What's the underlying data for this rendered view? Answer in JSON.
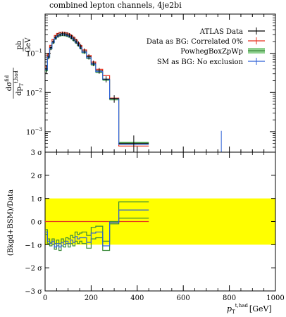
{
  "figure": {
    "title": "combined lepton channels, 4je2bi"
  },
  "chart_data": [
    {
      "type": "line",
      "panel": "upper",
      "ylabel_num": "dσ",
      "ylabel_num_sup": "fid",
      "ylabel_den": "dp",
      "ylabel_den_sub": "T",
      "ylabel_den_sup": "t,had",
      "yunit_num": "pb",
      "yunit_den": "GeV",
      "yscale": "log",
      "ylim": [
        0.0003,
        1.0
      ],
      "xlim": [
        0,
        1000
      ],
      "yticks": [
        {
          "value": 0.1,
          "base": "10",
          "exp": "−1"
        },
        {
          "value": 0.01,
          "base": "10",
          "exp": "−2"
        },
        {
          "value": 0.001,
          "base": "10",
          "exp": "−3"
        }
      ],
      "legend_position": "top-right",
      "x_edges": [
        0,
        10,
        20,
        30,
        40,
        50,
        60,
        70,
        80,
        90,
        100,
        110,
        120,
        130,
        140,
        150,
        160,
        180,
        200,
        220,
        250,
        280,
        320,
        450,
        1000
      ],
      "series": [
        {
          "name": "ATLAS Data",
          "kind": "data",
          "color": "#000000",
          "values": [
            0.04,
            0.085,
            0.14,
            0.2,
            0.255,
            0.29,
            0.31,
            0.318,
            0.315,
            0.305,
            0.29,
            0.265,
            0.235,
            0.205,
            0.175,
            0.148,
            0.115,
            0.082,
            0.056,
            0.036,
            0.022,
            0.007,
            0.0005
          ],
          "errors": [
            0.01,
            0.015,
            0.02,
            0.025,
            0.03,
            0.035,
            0.038,
            0.04,
            0.04,
            0.04,
            0.038,
            0.035,
            0.032,
            0.03,
            0.026,
            0.022,
            0.018,
            0.013,
            0.009,
            0.006,
            0.004,
            0.0015,
            0.0003
          ]
        },
        {
          "name": "Data as BG: Correlated 0%",
          "kind": "line",
          "color": "#e8311f",
          "values": [
            0.045,
            0.095,
            0.16,
            0.225,
            0.285,
            0.32,
            0.34,
            0.345,
            0.34,
            0.328,
            0.31,
            0.285,
            0.255,
            0.22,
            0.185,
            0.158,
            0.122,
            0.088,
            0.06,
            0.039,
            0.027,
            0.0072,
            0.00043
          ]
        },
        {
          "name": "PowhegBoxZpWp",
          "kind": "band",
          "color": "#3a8a3a",
          "band_color": "#8fd18f",
          "values": [
            0.036,
            0.078,
            0.13,
            0.185,
            0.235,
            0.265,
            0.283,
            0.29,
            0.287,
            0.278,
            0.263,
            0.24,
            0.213,
            0.186,
            0.158,
            0.134,
            0.104,
            0.075,
            0.051,
            0.033,
            0.021,
            0.0067,
            0.00052
          ],
          "band_half_width": 0.06
        },
        {
          "name": "SM as BG: No exclusion",
          "kind": "line",
          "color": "#2f62d6",
          "values": [
            0.038,
            0.08,
            0.134,
            0.19,
            0.242,
            0.272,
            0.291,
            0.298,
            0.295,
            0.286,
            0.271,
            0.247,
            0.219,
            0.191,
            0.163,
            0.138,
            0.107,
            0.077,
            0.053,
            0.034,
            0.0215,
            0.0069,
            0.00047
          ]
        }
      ]
    },
    {
      "type": "line",
      "panel": "lower",
      "ylabel": "(Bkgd+BSM)/Data",
      "xlabel_main": "p",
      "xlabel_sub": "T",
      "xlabel_sup": "t,had",
      "xlabel_unit": "[GeV]",
      "ylim": [
        -3,
        3
      ],
      "xlim": [
        0,
        1000
      ],
      "yticks": [
        {
          "value": 3,
          "label": "3 σ"
        },
        {
          "value": 2,
          "label": "2 σ"
        },
        {
          "value": 1,
          "label": "1 σ"
        },
        {
          "value": 0,
          "label": "0 σ"
        },
        {
          "value": -1,
          "label": "−1 σ"
        },
        {
          "value": -2,
          "label": "−2 σ"
        },
        {
          "value": -3,
          "label": "−3 σ"
        }
      ],
      "xticks": [
        0,
        200,
        400,
        600,
        800,
        1000
      ],
      "xtick_labels": [
        "0",
        "200",
        "400",
        "600",
        "800",
        "1000"
      ],
      "yellow_band": [
        -1,
        1
      ],
      "x_edges": [
        0,
        10,
        20,
        30,
        40,
        50,
        60,
        70,
        80,
        90,
        100,
        110,
        120,
        130,
        140,
        150,
        160,
        180,
        200,
        220,
        250,
        280,
        320,
        450,
        1000
      ],
      "series": [
        {
          "name": "Data as BG: Correlated 0%",
          "color": "#e8311f",
          "values": [
            0.0,
            0.0,
            0.0,
            0.0,
            0.0,
            0.0,
            0.0,
            0.0,
            0.0,
            0.0,
            0.0,
            0.0,
            0.0,
            0.0,
            0.0,
            0.0,
            0.0,
            0.0,
            0.0,
            0.0,
            0.0,
            0.0,
            0.0
          ]
        },
        {
          "name": "PowhegBoxZpWp upper",
          "color": "#3a8a3a",
          "values": [
            -0.35,
            -0.75,
            -0.9,
            -0.75,
            -0.95,
            -0.8,
            -0.95,
            -0.75,
            -0.85,
            -0.7,
            -0.75,
            -0.6,
            -0.7,
            -0.45,
            -0.55,
            -0.5,
            -0.45,
            -0.6,
            -0.25,
            -0.2,
            -0.85,
            0.0,
            0.85
          ]
        },
        {
          "name": "PowhegBoxZpWp lower",
          "color": "#3a8a3a",
          "values": [
            -0.55,
            -0.95,
            -1.05,
            -1.0,
            -1.2,
            -1.05,
            -1.25,
            -1.05,
            -1.1,
            -0.95,
            -1.1,
            -0.95,
            -1.05,
            -0.85,
            -0.95,
            -0.85,
            -0.95,
            -1.15,
            -0.75,
            -0.7,
            -1.25,
            -0.1,
            0.15
          ]
        },
        {
          "name": "SM as BG: No exclusion",
          "color": "#2f62d6",
          "values": [
            -0.45,
            -0.85,
            -0.95,
            -0.85,
            -1.1,
            -0.95,
            -1.1,
            -0.9,
            -1.0,
            -0.85,
            -0.95,
            -0.8,
            -0.9,
            -0.65,
            -0.75,
            -0.7,
            -0.7,
            -0.9,
            -0.5,
            -0.45,
            -1.05,
            -0.05,
            0.5
          ]
        }
      ]
    }
  ]
}
